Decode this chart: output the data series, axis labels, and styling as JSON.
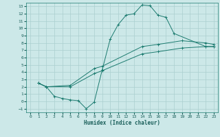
{
  "xlabel": "Humidex (Indice chaleur)",
  "bg_color": "#cce8e8",
  "grid_color": "#aacfcf",
  "line_color": "#1a7a6e",
  "xlim": [
    -0.5,
    23.5
  ],
  "ylim": [
    -1.5,
    13.5
  ],
  "xticks": [
    0,
    1,
    2,
    3,
    4,
    5,
    6,
    7,
    8,
    9,
    10,
    11,
    12,
    13,
    14,
    15,
    16,
    17,
    18,
    19,
    20,
    21,
    22,
    23
  ],
  "yticks": [
    -1,
    0,
    1,
    2,
    3,
    4,
    5,
    6,
    7,
    8,
    9,
    10,
    11,
    12,
    13
  ],
  "curve1_x": [
    1,
    2,
    3,
    4,
    5,
    6,
    7,
    8,
    9,
    10,
    11,
    12,
    13,
    14,
    15,
    16,
    17,
    18,
    22,
    23
  ],
  "curve1_y": [
    2.5,
    2.0,
    0.7,
    0.4,
    0.2,
    0.1,
    -1.0,
    -0.1,
    4.3,
    8.5,
    10.5,
    11.8,
    12.0,
    13.2,
    13.1,
    11.8,
    11.5,
    9.3,
    7.5,
    7.5
  ],
  "curve2_x": [
    1,
    2,
    5,
    8,
    9,
    14,
    16,
    19,
    22,
    23
  ],
  "curve2_y": [
    2.5,
    2.0,
    2.2,
    4.5,
    4.8,
    7.5,
    7.8,
    8.3,
    8.0,
    7.8
  ],
  "curve3_x": [
    1,
    2,
    5,
    8,
    9,
    14,
    16,
    19,
    22,
    23
  ],
  "curve3_y": [
    2.5,
    2.0,
    2.0,
    3.8,
    4.2,
    6.5,
    6.8,
    7.3,
    7.5,
    7.5
  ]
}
